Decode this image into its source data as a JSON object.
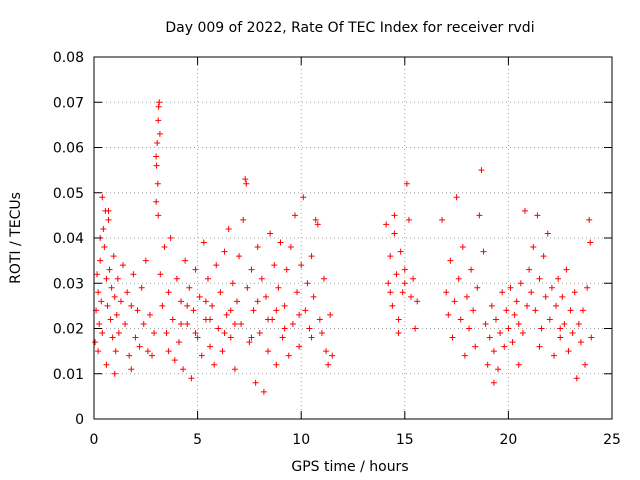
{
  "chart_data": {
    "type": "scatter",
    "title": "Day 009 of 2022, Rate Of TEC Index for receiver rvdi",
    "xlabel": "GPS time / hours",
    "ylabel": "ROTI / TECUs",
    "xlim": [
      0,
      25
    ],
    "ylim": [
      0,
      0.08
    ],
    "xticks": [
      0,
      5,
      10,
      15,
      20,
      25
    ],
    "xtick_labels": [
      "0",
      "5",
      "10",
      "15",
      "20",
      "25"
    ],
    "yticks": [
      0,
      0.01,
      0.02,
      0.03,
      0.04,
      0.05,
      0.06,
      0.07,
      0.08
    ],
    "ytick_labels": [
      "0",
      "0.01",
      "0.02",
      "0.03",
      "0.04",
      "0.05",
      "0.06",
      "0.07",
      "0.08"
    ],
    "grid": true,
    "marker": "+",
    "color": "#ff0000",
    "series": [
      {
        "name": "ROTI",
        "points": [
          [
            0.05,
            0.017
          ],
          [
            0.1,
            0.024
          ],
          [
            0.15,
            0.032
          ],
          [
            0.2,
            0.028
          ],
          [
            0.25,
            0.021
          ],
          [
            0.3,
            0.035
          ],
          [
            0.35,
            0.026
          ],
          [
            0.4,
            0.019
          ],
          [
            0.45,
            0.042
          ],
          [
            0.5,
            0.038
          ],
          [
            0.55,
            0.046
          ],
          [
            0.6,
            0.031
          ],
          [
            0.65,
            0.025
          ],
          [
            0.7,
            0.044
          ],
          [
            0.75,
            0.033
          ],
          [
            0.8,
            0.022
          ],
          [
            0.85,
            0.029
          ],
          [
            0.9,
            0.018
          ],
          [
            0.95,
            0.036
          ],
          [
            1.0,
            0.027
          ],
          [
            1.05,
            0.015
          ],
          [
            1.1,
            0.023
          ],
          [
            1.15,
            0.031
          ],
          [
            1.2,
            0.019
          ],
          [
            1.3,
            0.026
          ],
          [
            1.4,
            0.034
          ],
          [
            1.5,
            0.021
          ],
          [
            1.6,
            0.028
          ],
          [
            1.7,
            0.014
          ],
          [
            1.8,
            0.025
          ],
          [
            1.9,
            0.032
          ],
          [
            2.0,
            0.018
          ],
          [
            2.1,
            0.024
          ],
          [
            2.2,
            0.016
          ],
          [
            2.3,
            0.029
          ],
          [
            2.4,
            0.021
          ],
          [
            2.5,
            0.035
          ],
          [
            2.6,
            0.015
          ],
          [
            2.7,
            0.023
          ],
          [
            2.8,
            0.014
          ],
          [
            2.9,
            0.019
          ],
          [
            0.2,
            0.015
          ],
          [
            0.6,
            0.012
          ],
          [
            1.0,
            0.01
          ],
          [
            1.8,
            0.011
          ],
          [
            0.4,
            0.049
          ],
          [
            0.7,
            0.046
          ],
          [
            0.3,
            0.04
          ],
          [
            3.0,
            0.058
          ],
          [
            3.05,
            0.061
          ],
          [
            3.1,
            0.066
          ],
          [
            3.12,
            0.069
          ],
          [
            3.15,
            0.07
          ],
          [
            3.18,
            0.063
          ],
          [
            3.02,
            0.056
          ],
          [
            3.08,
            0.052
          ],
          [
            3.0,
            0.048
          ],
          [
            3.1,
            0.045
          ],
          [
            3.2,
            0.032
          ],
          [
            3.3,
            0.025
          ],
          [
            3.4,
            0.038
          ],
          [
            3.5,
            0.019
          ],
          [
            3.6,
            0.028
          ],
          [
            3.7,
            0.04
          ],
          [
            3.8,
            0.022
          ],
          [
            3.9,
            0.013
          ],
          [
            4.0,
            0.031
          ],
          [
            4.1,
            0.017
          ],
          [
            4.2,
            0.026
          ],
          [
            4.3,
            0.011
          ],
          [
            4.4,
            0.035
          ],
          [
            4.5,
            0.021
          ],
          [
            4.6,
            0.029
          ],
          [
            4.7,
            0.009
          ],
          [
            4.8,
            0.024
          ],
          [
            4.9,
            0.033
          ],
          [
            5.0,
            0.018
          ],
          [
            5.1,
            0.027
          ],
          [
            5.2,
            0.014
          ],
          [
            5.3,
            0.039
          ],
          [
            5.4,
            0.022
          ],
          [
            5.5,
            0.031
          ],
          [
            5.6,
            0.016
          ],
          [
            5.7,
            0.025
          ],
          [
            5.8,
            0.012
          ],
          [
            5.9,
            0.034
          ],
          [
            6.0,
            0.02
          ],
          [
            6.1,
            0.028
          ],
          [
            6.2,
            0.015
          ],
          [
            6.3,
            0.037
          ],
          [
            6.4,
            0.023
          ],
          [
            6.5,
            0.042
          ],
          [
            6.6,
            0.018
          ],
          [
            6.7,
            0.03
          ],
          [
            6.8,
            0.011
          ],
          [
            6.9,
            0.026
          ],
          [
            7.0,
            0.036
          ],
          [
            7.1,
            0.021
          ],
          [
            7.2,
            0.044
          ],
          [
            7.3,
            0.053
          ],
          [
            7.35,
            0.052
          ],
          [
            7.4,
            0.029
          ],
          [
            7.5,
            0.017
          ],
          [
            7.6,
            0.033
          ],
          [
            7.7,
            0.024
          ],
          [
            7.8,
            0.008
          ],
          [
            7.9,
            0.038
          ],
          [
            8.0,
            0.019
          ],
          [
            8.1,
            0.031
          ],
          [
            8.2,
            0.006
          ],
          [
            8.3,
            0.027
          ],
          [
            8.4,
            0.015
          ],
          [
            8.5,
            0.041
          ],
          [
            8.6,
            0.022
          ],
          [
            8.7,
            0.034
          ],
          [
            8.8,
            0.012
          ],
          [
            8.9,
            0.029
          ],
          [
            9.0,
            0.039
          ],
          [
            9.1,
            0.018
          ],
          [
            9.2,
            0.025
          ],
          [
            9.3,
            0.033
          ],
          [
            9.4,
            0.014
          ],
          [
            9.5,
            0.038
          ],
          [
            9.6,
            0.021
          ],
          [
            9.7,
            0.045
          ],
          [
            9.8,
            0.028
          ],
          [
            9.9,
            0.016
          ],
          [
            10.0,
            0.034
          ],
          [
            10.1,
            0.049
          ],
          [
            10.2,
            0.024
          ],
          [
            10.3,
            0.03
          ],
          [
            10.4,
            0.02
          ],
          [
            10.5,
            0.036
          ],
          [
            10.6,
            0.027
          ],
          [
            10.7,
            0.044
          ],
          [
            10.8,
            0.043
          ],
          [
            10.9,
            0.022
          ],
          [
            11.0,
            0.019
          ],
          [
            11.1,
            0.031
          ],
          [
            11.2,
            0.015
          ],
          [
            11.3,
            0.012
          ],
          [
            11.4,
            0.023
          ],
          [
            11.5,
            0.014
          ],
          [
            3.6,
            0.015
          ],
          [
            4.2,
            0.021
          ],
          [
            4.9,
            0.019
          ],
          [
            5.6,
            0.022
          ],
          [
            6.3,
            0.019
          ],
          [
            6.8,
            0.021
          ],
          [
            7.6,
            0.018
          ],
          [
            8.4,
            0.022
          ],
          [
            9.2,
            0.02
          ],
          [
            9.9,
            0.023
          ],
          [
            10.5,
            0.018
          ],
          [
            4.5,
            0.025
          ],
          [
            5.4,
            0.026
          ],
          [
            6.6,
            0.024
          ],
          [
            7.9,
            0.026
          ],
          [
            8.8,
            0.024
          ],
          [
            14.1,
            0.043
          ],
          [
            14.2,
            0.03
          ],
          [
            14.3,
            0.036
          ],
          [
            14.4,
            0.025
          ],
          [
            14.5,
            0.041
          ],
          [
            14.6,
            0.032
          ],
          [
            14.7,
            0.022
          ],
          [
            14.8,
            0.037
          ],
          [
            14.9,
            0.028
          ],
          [
            15.0,
            0.033
          ],
          [
            15.1,
            0.052
          ],
          [
            15.2,
            0.044
          ],
          [
            15.3,
            0.027
          ],
          [
            15.4,
            0.031
          ],
          [
            15.5,
            0.02
          ],
          [
            15.6,
            0.026
          ],
          [
            14.3,
            0.028
          ],
          [
            14.7,
            0.019
          ],
          [
            15.0,
            0.03
          ],
          [
            14.5,
            0.045
          ],
          [
            16.8,
            0.044
          ],
          [
            17.0,
            0.028
          ],
          [
            17.1,
            0.023
          ],
          [
            17.2,
            0.035
          ],
          [
            17.3,
            0.018
          ],
          [
            17.4,
            0.026
          ],
          [
            17.5,
            0.049
          ],
          [
            17.6,
            0.031
          ],
          [
            17.7,
            0.022
          ],
          [
            17.8,
            0.038
          ],
          [
            17.9,
            0.014
          ],
          [
            18.0,
            0.027
          ],
          [
            18.1,
            0.02
          ],
          [
            18.2,
            0.033
          ],
          [
            18.3,
            0.024
          ],
          [
            18.4,
            0.016
          ],
          [
            18.5,
            0.029
          ],
          [
            18.6,
            0.045
          ],
          [
            18.7,
            0.055
          ],
          [
            18.8,
            0.037
          ],
          [
            18.9,
            0.021
          ],
          [
            19.0,
            0.012
          ],
          [
            19.1,
            0.018
          ],
          [
            19.2,
            0.025
          ],
          [
            19.3,
            0.015
          ],
          [
            19.4,
            0.022
          ],
          [
            19.5,
            0.011
          ],
          [
            19.6,
            0.019
          ],
          [
            19.7,
            0.028
          ],
          [
            19.8,
            0.016
          ],
          [
            19.9,
            0.024
          ],
          [
            20.0,
            0.02
          ],
          [
            20.1,
            0.029
          ],
          [
            20.2,
            0.017
          ],
          [
            20.3,
            0.023
          ],
          [
            20.4,
            0.026
          ],
          [
            20.5,
            0.021
          ],
          [
            20.6,
            0.03
          ],
          [
            20.7,
            0.019
          ],
          [
            20.8,
            0.046
          ],
          [
            20.9,
            0.025
          ],
          [
            21.0,
            0.033
          ],
          [
            21.1,
            0.028
          ],
          [
            21.2,
            0.038
          ],
          [
            21.3,
            0.024
          ],
          [
            21.4,
            0.045
          ],
          [
            21.5,
            0.031
          ],
          [
            21.6,
            0.02
          ],
          [
            21.7,
            0.036
          ],
          [
            21.8,
            0.027
          ],
          [
            21.9,
            0.041
          ],
          [
            22.0,
            0.022
          ],
          [
            22.1,
            0.029
          ],
          [
            22.2,
            0.014
          ],
          [
            22.3,
            0.025
          ],
          [
            22.4,
            0.031
          ],
          [
            22.5,
            0.018
          ],
          [
            22.6,
            0.027
          ],
          [
            22.7,
            0.021
          ],
          [
            22.8,
            0.033
          ],
          [
            22.9,
            0.015
          ],
          [
            23.0,
            0.024
          ],
          [
            23.1,
            0.019
          ],
          [
            23.2,
            0.028
          ],
          [
            23.3,
            0.009
          ],
          [
            23.4,
            0.021
          ],
          [
            23.5,
            0.017
          ],
          [
            23.6,
            0.024
          ],
          [
            23.7,
            0.012
          ],
          [
            23.8,
            0.029
          ],
          [
            23.9,
            0.044
          ],
          [
            23.95,
            0.039
          ],
          [
            24.0,
            0.018
          ],
          [
            19.3,
            0.008
          ],
          [
            20.5,
            0.012
          ],
          [
            21.5,
            0.016
          ],
          [
            22.5,
            0.02
          ]
        ]
      }
    ]
  }
}
